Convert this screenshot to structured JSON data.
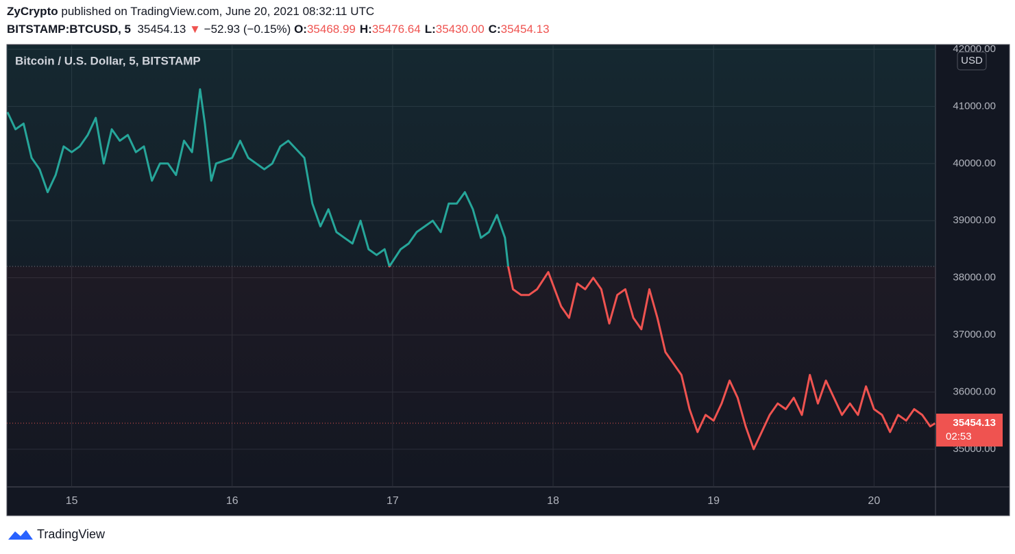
{
  "header": {
    "publisher": "ZyCrypto",
    "published": "published on TradingView.com, June 20, 2021 08:32:11 UTC",
    "symbol": "BITSTAMP:BTCUSD, 5",
    "last": "35454.13",
    "arrow": "▼",
    "change": "−52.93 (−0.15%)",
    "ohlc": [
      {
        "label": "O:",
        "value": "35468.99"
      },
      {
        "label": "H:",
        "value": "35476.64"
      },
      {
        "label": "L:",
        "value": "35430.00"
      },
      {
        "label": "C:",
        "value": "35454.13"
      }
    ]
  },
  "chart_data": {
    "type": "line",
    "title": "Bitcoin / U.S. Dollar, 5, BITSTAMP",
    "currency": "USD",
    "x": [
      14.6,
      14.65,
      14.7,
      14.75,
      14.8,
      14.85,
      14.9,
      14.95,
      15.0,
      15.05,
      15.1,
      15.15,
      15.2,
      15.25,
      15.3,
      15.35,
      15.4,
      15.45,
      15.5,
      15.55,
      15.6,
      15.65,
      15.7,
      15.75,
      15.8,
      15.83,
      15.87,
      15.9,
      16.0,
      16.05,
      16.1,
      16.15,
      16.2,
      16.25,
      16.3,
      16.35,
      16.45,
      16.5,
      16.55,
      16.6,
      16.65,
      16.7,
      16.75,
      16.8,
      16.85,
      16.9,
      16.95,
      16.98,
      17.05,
      17.1,
      17.15,
      17.2,
      17.25,
      17.3,
      17.35,
      17.4,
      17.45,
      17.5,
      17.55,
      17.6,
      17.65,
      17.7,
      17.72,
      17.75,
      17.8,
      17.85,
      17.9,
      17.97,
      18.05,
      18.1,
      18.15,
      18.2,
      18.25,
      18.3,
      18.35,
      18.4,
      18.45,
      18.5,
      18.55,
      18.6,
      18.65,
      18.7,
      18.75,
      18.8,
      18.85,
      18.9,
      18.95,
      19.0,
      19.05,
      19.1,
      19.15,
      19.2,
      19.25,
      19.3,
      19.35,
      19.4,
      19.45,
      19.5,
      19.55,
      19.6,
      19.65,
      19.7,
      19.75,
      19.8,
      19.85,
      19.9,
      19.95,
      20.0,
      20.05,
      20.1,
      20.15,
      20.2,
      20.25,
      20.3,
      20.35,
      20.38
    ],
    "values": [
      40900,
      40600,
      40700,
      40100,
      39900,
      39500,
      39800,
      40300,
      40200,
      40300,
      40500,
      40800,
      40000,
      40600,
      40400,
      40500,
      40200,
      40300,
      39700,
      40000,
      40000,
      39800,
      40400,
      40200,
      41300,
      40700,
      39700,
      40000,
      40100,
      40400,
      40100,
      40000,
      39900,
      40000,
      40300,
      40400,
      40100,
      39300,
      38900,
      39200,
      38800,
      38700,
      38600,
      39000,
      38500,
      38400,
      38500,
      38200,
      38500,
      38600,
      38800,
      38900,
      39000,
      38800,
      39300,
      39300,
      39500,
      39200,
      38700,
      38800,
      39100,
      38700,
      38200,
      37800,
      37700,
      37700,
      37800,
      38100,
      37500,
      37300,
      37900,
      37800,
      38000,
      37800,
      37200,
      37700,
      37800,
      37300,
      37100,
      37800,
      37300,
      36700,
      36500,
      36300,
      35700,
      35300,
      35600,
      35500,
      35800,
      36200,
      35900,
      35400,
      35000,
      35300,
      35600,
      35800,
      35700,
      35900,
      35600,
      36300,
      35800,
      36200,
      35900,
      35600,
      35800,
      35600,
      36100,
      35700,
      35600,
      35300,
      35600,
      35500,
      35700,
      35600,
      35400,
      35454.13
    ],
    "color_up": "#26a69a",
    "color_down": "#ef5350",
    "baseline": 38200,
    "last_price": 35454.13,
    "countdown": "02:53",
    "xlim": [
      14.596,
      20.383
    ],
    "xticks": [
      15,
      16,
      17,
      18,
      19,
      20
    ],
    "ylim": [
      34340,
      42072
    ],
    "yticks": [
      {
        "value": 35000,
        "label": "35000.00"
      },
      {
        "value": 36000,
        "label": "36000.00"
      },
      {
        "value": 37000,
        "label": "37000.00"
      },
      {
        "value": 38000,
        "label": "38000.00"
      },
      {
        "value": 39000,
        "label": "39000.00"
      },
      {
        "value": 40000,
        "label": "40000.00"
      },
      {
        "value": 41000,
        "label": "41000.00"
      },
      {
        "value": 42000,
        "label": "42000.00"
      }
    ],
    "grid": true
  },
  "footer": {
    "brand": "TradingView"
  }
}
